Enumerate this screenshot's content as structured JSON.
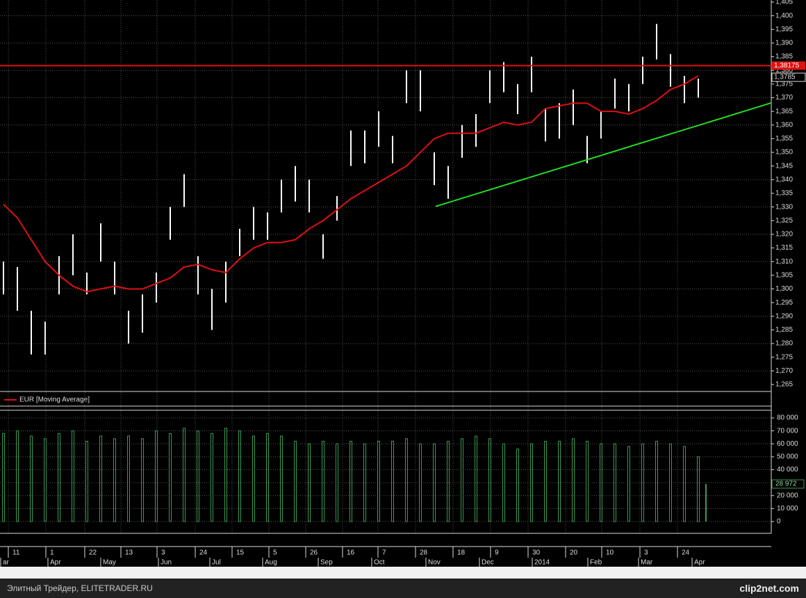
{
  "chart_data": [
    {
      "type": "bar-range",
      "name": "price",
      "legend": "EUR [Moving Average]",
      "ylim": [
        1.265,
        1.405
      ],
      "yticks": [
        {
          "value": 1.265,
          "label": "1,265"
        },
        {
          "value": 1.27,
          "label": "1,270"
        },
        {
          "value": 1.275,
          "label": "1,275"
        },
        {
          "value": 1.28,
          "label": "1,280"
        },
        {
          "value": 1.285,
          "label": "1,285"
        },
        {
          "value": 1.29,
          "label": "1,290"
        },
        {
          "value": 1.295,
          "label": "1,295"
        },
        {
          "value": 1.3,
          "label": "1,300"
        },
        {
          "value": 1.305,
          "label": "1,305"
        },
        {
          "value": 1.31,
          "label": "1,310"
        },
        {
          "value": 1.315,
          "label": "1,315"
        },
        {
          "value": 1.32,
          "label": "1,320"
        },
        {
          "value": 1.325,
          "label": "1,325"
        },
        {
          "value": 1.33,
          "label": "1,330"
        },
        {
          "value": 1.335,
          "label": "1,335"
        },
        {
          "value": 1.34,
          "label": "1,340"
        },
        {
          "value": 1.345,
          "label": "1,345"
        },
        {
          "value": 1.35,
          "label": "1,350"
        },
        {
          "value": 1.355,
          "label": "1,355"
        },
        {
          "value": 1.36,
          "label": "1,360"
        },
        {
          "value": 1.365,
          "label": "1,365"
        },
        {
          "value": 1.37,
          "label": "1,370"
        },
        {
          "value": 1.375,
          "label": "1,375"
        },
        {
          "value": 1.38,
          "label": "1,380"
        },
        {
          "value": 1.385,
          "label": "1,385"
        },
        {
          "value": 1.39,
          "label": "1,390"
        },
        {
          "value": 1.395,
          "label": "1,395"
        },
        {
          "value": 1.4,
          "label": "1,400"
        },
        {
          "value": 1.405,
          "label": "1,405"
        }
      ],
      "grid": true,
      "bar_color": "#ffffff",
      "high": [
        1.31,
        1.308,
        1.292,
        1.288,
        1.312,
        1.32,
        1.306,
        1.324,
        1.31,
        1.292,
        1.298,
        1.306,
        1.33,
        1.342,
        1.312,
        1.3,
        1.31,
        1.322,
        1.33,
        1.328,
        1.34,
        1.345,
        1.34,
        1.32,
        1.334,
        1.358,
        1.358,
        1.365,
        1.356,
        1.38,
        1.38,
        1.35,
        1.345,
        1.36,
        1.364,
        1.38,
        1.383,
        1.375,
        1.385,
        1.366,
        1.368,
        1.373,
        1.356,
        1.365,
        1.377,
        1.375,
        1.385,
        1.397,
        1.386,
        1.378,
        1.377
      ],
      "low": [
        1.298,
        1.292,
        1.276,
        1.276,
        1.298,
        1.305,
        1.298,
        1.31,
        1.298,
        1.28,
        1.284,
        1.295,
        1.318,
        1.33,
        1.298,
        1.285,
        1.295,
        1.312,
        1.318,
        1.318,
        1.328,
        1.332,
        1.328,
        1.311,
        1.325,
        1.345,
        1.346,
        1.352,
        1.346,
        1.368,
        1.365,
        1.338,
        1.333,
        1.348,
        1.352,
        1.368,
        1.372,
        1.364,
        1.372,
        1.354,
        1.355,
        1.36,
        1.346,
        1.355,
        1.366,
        1.365,
        1.375,
        1.384,
        1.374,
        1.368,
        1.37
      ],
      "series": [
        {
          "name": "EUR [Moving Average]",
          "color": "#e01010",
          "values": [
            1.331,
            1.326,
            1.318,
            1.31,
            1.305,
            1.301,
            1.299,
            1.3,
            1.301,
            1.3,
            1.3,
            1.302,
            1.304,
            1.308,
            1.309,
            1.307,
            1.306,
            1.311,
            1.315,
            1.317,
            1.317,
            1.318,
            1.322,
            1.325,
            1.329,
            1.333,
            1.336,
            1.339,
            1.342,
            1.345,
            1.35,
            1.355,
            1.357,
            1.357,
            1.357,
            1.359,
            1.361,
            1.36,
            1.361,
            1.366,
            1.367,
            1.368,
            1.368,
            1.365,
            1.365,
            1.364,
            1.366,
            1.369,
            1.373,
            1.375,
            1.378
          ]
        }
      ],
      "hline": {
        "value": 1.38175,
        "label": "1,38175",
        "color": "#e01010"
      },
      "last_price": {
        "value": 1.3785,
        "label": "1,3785"
      },
      "trendline": {
        "values": [
          1.3302,
          1.3681
        ],
        "color": "#22dd22"
      }
    },
    {
      "type": "bar",
      "name": "volume",
      "ylim": [
        0,
        80000
      ],
      "yticks": [
        0,
        {
          "value": 10000,
          "label": "10 000"
        },
        {
          "value": 20000,
          "label": "20 000"
        },
        {
          "value": 30000,
          "label": "30 000"
        },
        {
          "value": 40000,
          "label": "40 000"
        },
        {
          "value": 50000,
          "label": "50 000"
        },
        {
          "value": 60000,
          "label": "60 000"
        },
        {
          "value": 70000,
          "label": "70 000"
        },
        {
          "value": 80000,
          "label": "80 000"
        }
      ],
      "grid": true,
      "color": "#3c9a55",
      "values": [
        68000,
        70000,
        66000,
        64000,
        68000,
        70000,
        62000,
        66000,
        64000,
        66000,
        64000,
        70000,
        68000,
        72000,
        70000,
        68000,
        72000,
        70000,
        66000,
        68000,
        66000,
        62000,
        60000,
        62000,
        60000,
        62000,
        60000,
        62000,
        62000,
        64000,
        60000,
        60000,
        62000,
        64000,
        66000,
        64000,
        60000,
        56000,
        60000,
        62000,
        62000,
        64000,
        62000,
        60000,
        60000,
        58000,
        60000,
        62000,
        60000,
        58000,
        50000
      ],
      "last_volume": {
        "value": 28972,
        "label": "28 972"
      },
      "day_labels": [
        "11",
        "1",
        "22",
        "13",
        "3",
        "24",
        "15",
        "5",
        "26",
        "16",
        "7",
        "28",
        "18",
        "9",
        "30",
        "20",
        "10",
        "3",
        "24"
      ],
      "month_labels": [
        "ar",
        "Apr",
        "May",
        "Jun",
        "Jul",
        "Aug",
        "Sep",
        "Oct",
        "Nov",
        "Dec",
        "2014",
        "Feb",
        "Mar",
        "Apr"
      ]
    }
  ],
  "footer": {
    "text": "Элитный Трейдер, ELITETRADER.RU",
    "logo": "clip2net.com"
  }
}
